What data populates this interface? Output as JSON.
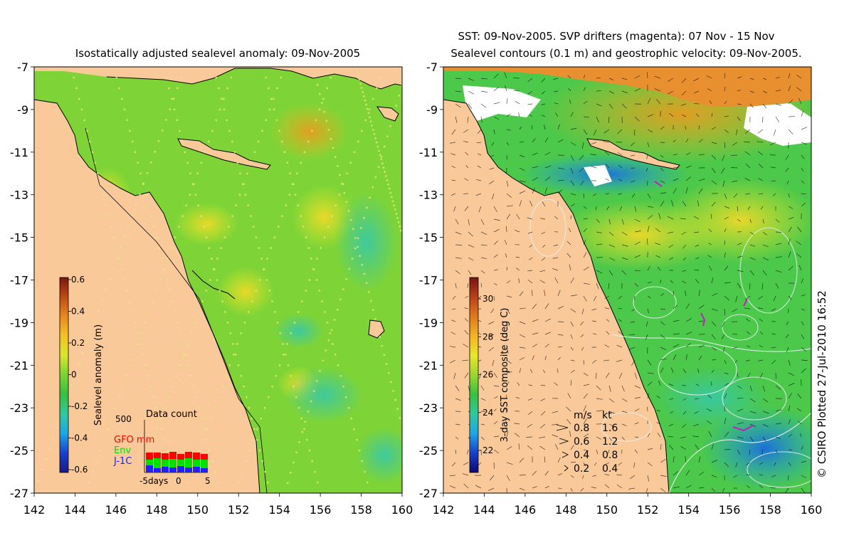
{
  "left_panel": {
    "title": "Isostatically adjusted sealevel anomaly: 09-Nov-2005",
    "colorbar": {
      "label": "Sealevel anomaly (m)",
      "ticks": [
        "0.6",
        "0.4",
        "0.2",
        "0",
        "-0.2",
        "-0.4",
        "-0.6"
      ],
      "colors": [
        "#1a1a80",
        "#1a3fd0",
        "#1aa8e6",
        "#30c9a0",
        "#36c040",
        "#7ad430",
        "#d8e62a",
        "#f2c424",
        "#e88a1c",
        "#c04a14",
        "#7a1410"
      ]
    },
    "data_count": {
      "title": "Data count",
      "ymax": "500",
      "xticks": [
        "-5days",
        "0",
        "5"
      ],
      "legend": [
        {
          "name": "GFO mm",
          "color": "#ff0000"
        },
        {
          "name": "Env",
          "color": "#00e000"
        },
        {
          "name": "J-1C",
          "color": "#2020ff"
        }
      ]
    }
  },
  "right_panel": {
    "title_line1": "SST: 09-Nov-2005. SVP drifters (magenta): 07 Nov - 15 Nov",
    "title_line2": "Sealevel contours (0.1 m) and geostrophic velocity: 09-Nov-2005.",
    "colorbar": {
      "label": "3-day SST composite (deg C)",
      "ticks": [
        "30",
        "28",
        "26",
        "24",
        "22"
      ],
      "colors": [
        "#0a0a70",
        "#1a3fd0",
        "#1aa8e6",
        "#30c9a0",
        "#36c040",
        "#9ad830",
        "#e8e62a",
        "#f2b424",
        "#e07a1c",
        "#b8401a",
        "#7a1410"
      ]
    },
    "velocity_legend": {
      "header_ms": "m/s",
      "header_kt": "kt",
      "rows": [
        {
          "ms": "0.8",
          "kt": "1.6"
        },
        {
          "ms": "0.6",
          "kt": "1.2"
        },
        {
          "ms": "0.4",
          "kt": "0.8"
        },
        {
          "ms": "0.2",
          "kt": "0.4"
        }
      ]
    }
  },
  "axes": {
    "lat_ticks": [
      "-7",
      "-9",
      "-11",
      "-13",
      "-15",
      "-17",
      "-19",
      "-21",
      "-23",
      "-25",
      "-27"
    ],
    "lon_ticks": [
      "142",
      "144",
      "146",
      "148",
      "150",
      "152",
      "154",
      "156",
      "158",
      "160"
    ]
  },
  "credit": "© CSIRO Plotted 27-Jul-2010 16:52",
  "colors": {
    "land": "#f9c99a",
    "ocean_left": "#7ed436",
    "ocean_right": "#4cc84a",
    "white_cloud": "#ffffff",
    "drifter": "#c020c0"
  }
}
